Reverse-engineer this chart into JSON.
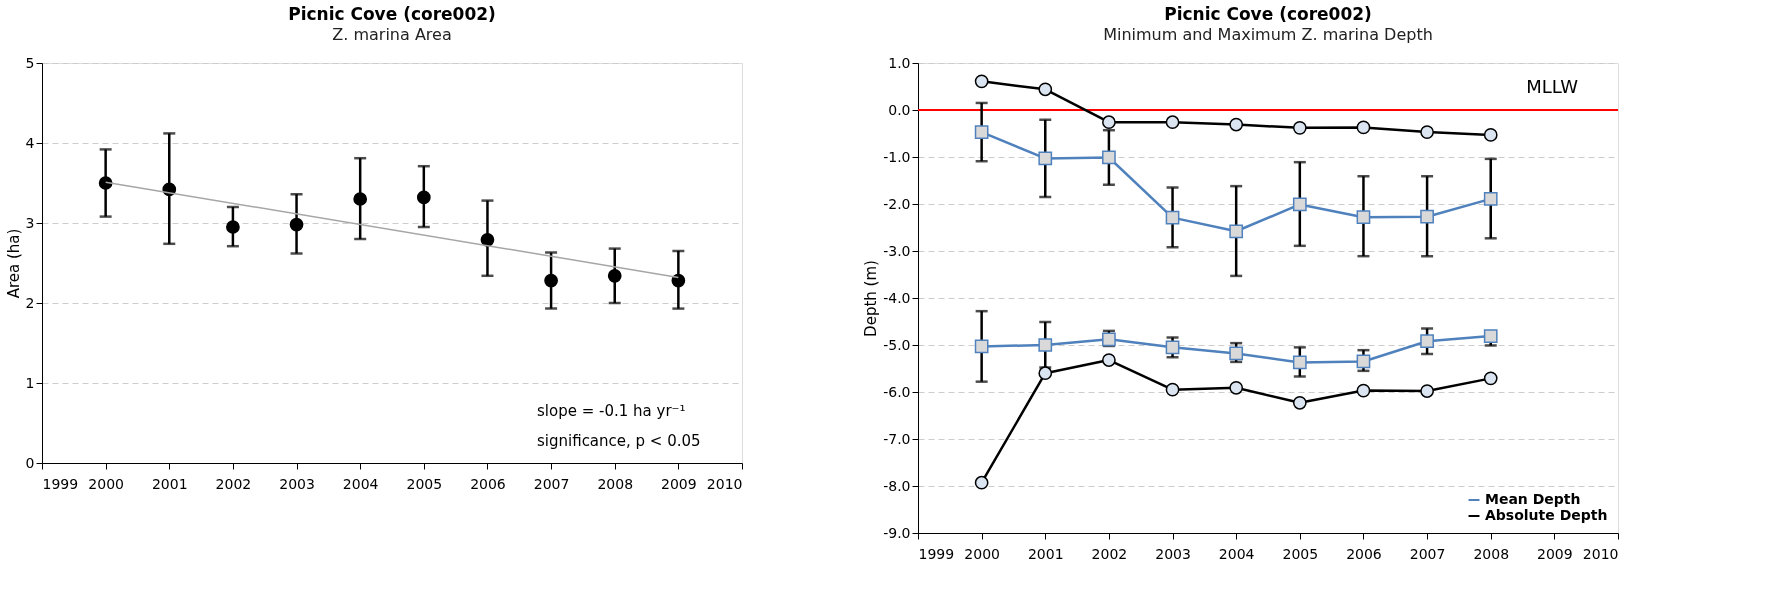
{
  "chart_data": [
    {
      "type": "scatter",
      "title": "Picnic Cove (core002)",
      "subtitle": "Z. marina Area",
      "ylabel": "Area  (ha)",
      "x": [
        2000,
        2001,
        2002,
        2003,
        2004,
        2005,
        2006,
        2007,
        2008,
        2009
      ],
      "series": [
        {
          "color": "#000000",
          "marker": "circle",
          "values": [
            3.5,
            3.42,
            2.95,
            2.98,
            3.3,
            3.32,
            2.79,
            2.28,
            2.34,
            2.28
          ],
          "errors": [
            [
              3.08,
              3.92
            ],
            [
              2.74,
              4.12
            ],
            [
              2.71,
              3.2
            ],
            [
              2.62,
              3.36
            ],
            [
              2.8,
              3.81
            ],
            [
              2.95,
              3.71
            ],
            [
              2.34,
              3.28
            ],
            [
              1.93,
              2.63
            ],
            [
              2.0,
              2.68
            ],
            [
              1.93,
              2.65
            ]
          ]
        },
        {
          "type": "line",
          "color": "#a6a6a6",
          "marker": "none",
          "x": [
            2000,
            2009
          ],
          "values": [
            3.51,
            2.32
          ]
        }
      ],
      "xlim": [
        1999,
        2010
      ],
      "xticks": [
        1999,
        2000,
        2001,
        2002,
        2003,
        2004,
        2005,
        2006,
        2007,
        2008,
        2009,
        2010
      ],
      "ylim": [
        0,
        5
      ],
      "yticks": [
        0,
        1,
        2,
        3,
        4,
        5
      ],
      "grid": "y",
      "legend": false,
      "annotations": [
        "slope = -0.1 ha yr⁻¹",
        "significance, p < 0.05"
      ]
    },
    {
      "type": "line",
      "title": "Picnic Cove (core002)",
      "subtitle": "Minimum and Maximum Z. marina Depth",
      "ylabel": "Depth  (m)",
      "x": [
        2000,
        2001,
        2002,
        2003,
        2004,
        2005,
        2006,
        2007,
        2008
      ],
      "series": [
        {
          "name": "Mean Depth",
          "color": "#4f81bd",
          "marker": "square",
          "values": [
            -0.47,
            -1.03,
            -1.01,
            -2.29,
            -2.58,
            -2.01,
            -2.28,
            -2.27,
            -1.89
          ],
          "errors": [
            [
              -1.09,
              0.15
            ],
            [
              -1.85,
              -0.21
            ],
            [
              -1.59,
              -0.43
            ],
            [
              -2.92,
              -1.65
            ],
            [
              -3.53,
              -1.62
            ],
            [
              -2.89,
              -1.11
            ],
            [
              -3.11,
              -1.41
            ],
            [
              -3.11,
              -1.41
            ],
            [
              -2.73,
              -1.04
            ]
          ]
        },
        {
          "color": "#4f81bd",
          "marker": "square",
          "values": [
            -5.03,
            -5.0,
            -4.88,
            -5.05,
            -5.18,
            -5.37,
            -5.35,
            -4.92,
            -4.81
          ],
          "errors": [
            [
              -5.78,
              -4.28
            ],
            [
              -5.48,
              -4.51
            ],
            [
              -5.02,
              -4.7
            ],
            [
              -5.26,
              -4.84
            ],
            [
              -5.36,
              -4.96
            ],
            [
              -5.67,
              -5.05
            ],
            [
              -5.55,
              -5.11
            ],
            [
              -5.19,
              -4.65
            ],
            [
              -5.01,
              -4.81
            ]
          ]
        },
        {
          "name": "Absolute Depth",
          "color": "#000000",
          "marker": "circle",
          "values": [
            0.61,
            0.44,
            -0.26,
            -0.26,
            -0.31,
            -0.38,
            -0.37,
            -0.47,
            -0.53
          ]
        },
        {
          "color": "#000000",
          "marker": "circle",
          "values": [
            -7.93,
            -5.6,
            -5.32,
            -5.95,
            -5.91,
            -6.23,
            -5.97,
            -5.98,
            -5.71
          ]
        }
      ],
      "xlim": [
        1999,
        2010
      ],
      "xticks": [
        1999,
        2000,
        2001,
        2002,
        2003,
        2004,
        2005,
        2006,
        2007,
        2008,
        2009,
        2010
      ],
      "ylim": [
        -9,
        1
      ],
      "yticks": [
        {
          "value": 1,
          "label": "1.0"
        },
        {
          "value": 0,
          "label": "0.0"
        },
        {
          "value": -1,
          "label": "-1.0"
        },
        {
          "value": -2,
          "label": "-2.0"
        },
        {
          "value": -3,
          "label": "-3.0"
        },
        {
          "value": -4,
          "label": "-4.0"
        },
        {
          "value": -5,
          "label": "-5.0"
        },
        {
          "value": -6,
          "label": "-6.0"
        },
        {
          "value": -7,
          "label": "-7.0"
        },
        {
          "value": -8,
          "label": "-8.0"
        },
        {
          "value": -9,
          "label": "-9.0"
        }
      ],
      "grid": "y",
      "legend": "bottom right",
      "ref_lines": [
        {
          "axis": "y",
          "value": 0,
          "label": "MLLW",
          "color": "#ff0000",
          "line_style": "solid"
        }
      ]
    }
  ]
}
